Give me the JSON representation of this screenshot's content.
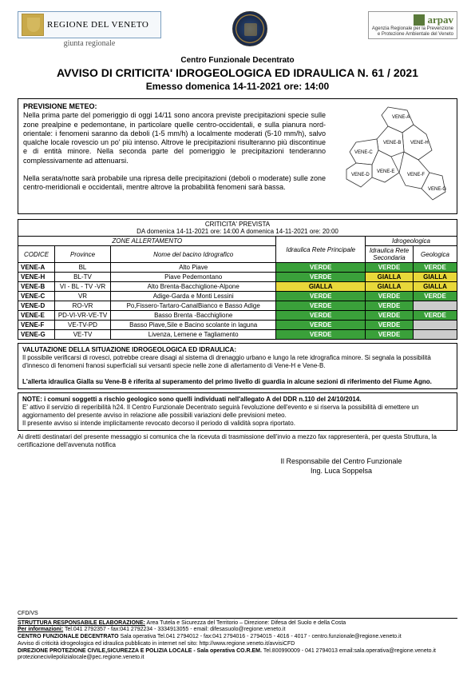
{
  "header": {
    "regione_line1": "REGIONE DEL VENETO",
    "giunta": "giunta regionale",
    "arpav_label": "arpav",
    "arpav_sub": "Agenzia Regionale per la Prevenzione\ne Protezione Ambientale del Veneto"
  },
  "titles": {
    "t1": "Centro Funzionale Decentrato",
    "t2": "AVVISO DI CRITICITA' IDROGEOLOGICA ED IDRAULICA N. 61 / 2021",
    "t3": "Emesso  domenica 14-11-2021 ore: 14:00"
  },
  "previsione": {
    "heading": "PREVISIONE METEO:",
    "p1": "Nella prima parte del pomeriggio di oggi 14/11 sono ancora previste precipitazioni specie sulle zone prealpine e pedemontane, in particolare quelle centro-occidentali, e sulla pianura nord-orientale: i fenomeni saranno da deboli (1-5 mm/h) a localmente moderati (5-10 mm/h), salvo qualche locale rovescio un po' più intenso. Altrove le precipitazioni risulteranno più discontinue e di entità minore. Nella seconda parte del pomeriggio le precipitazioni tenderanno complessivamente ad attenuarsi.",
    "p2": "Nella serata/notte sarà probabile una ripresa delle precipitazioni (deboli o moderate) sulle zone centro-meridionali e occidentali, mentre altrove la probabilità fenomeni sarà bassa."
  },
  "map_labels": [
    "VENE-A",
    "VENE-B",
    "VENE-C",
    "VENE-D",
    "VENE-E",
    "VENE-F",
    "VENE-G",
    "VENE-H"
  ],
  "criticita": {
    "title": "CRITICITA' PREVISTA",
    "period": "DA domenica 14-11-2021 ore: 14:00 A domenica 14-11-2021 ore: 20:00",
    "zone_hdr": "ZONE ALLERTAMENTO",
    "idrogeo_hdr": "Idrogeologica",
    "col_codice": "CODICE",
    "col_province": "Province",
    "col_bacino": "Nome del bacino Idrografico",
    "col_idr_princ": "Idraulica Rete Principale",
    "col_idr_sec": "Idraulica Rete Secondaria",
    "col_geo": "Geologica",
    "rows": [
      {
        "code": "VENE-A",
        "prov": "BL",
        "bacino": "Alto Piave",
        "c1": "VERDE",
        "c2": "VERDE",
        "c3": "VERDE"
      },
      {
        "code": "VENE-H",
        "prov": "BL-TV",
        "bacino": "Piave Pedemontano",
        "c1": "VERDE",
        "c2": "GIALLA",
        "c3": "GIALLA"
      },
      {
        "code": "VENE-B",
        "prov": "VI - BL - TV -VR",
        "bacino": "Alto Brenta-Bacchiglione-Alpone",
        "c1": "GIALLA",
        "c2": "GIALLA",
        "c3": "GIALLA"
      },
      {
        "code": "VENE-C",
        "prov": "VR",
        "bacino": "Adige-Garda e Monti Lessini",
        "c1": "VERDE",
        "c2": "VERDE",
        "c3": "VERDE"
      },
      {
        "code": "VENE-D",
        "prov": "RO-VR",
        "bacino": "Po,Fissero-Tartaro-CanalBianco e Basso Adige",
        "c1": "VERDE",
        "c2": "VERDE",
        "c3": ""
      },
      {
        "code": "VENE-E",
        "prov": "PD-VI-VR-VE-TV",
        "bacino": "Basso Brenta -Bacchiglione",
        "c1": "VERDE",
        "c2": "VERDE",
        "c3": "VERDE"
      },
      {
        "code": "VENE-F",
        "prov": "VE-TV-PD",
        "bacino": "Basso Piave,Sile e Bacino scolante in laguna",
        "c1": "VERDE",
        "c2": "VERDE",
        "c3": ""
      },
      {
        "code": "VENE-G",
        "prov": "VE-TV",
        "bacino": "Livenza, Lemene e Tagliamento",
        "c1": "VERDE",
        "c2": "VERDE",
        "c3": ""
      }
    ]
  },
  "colors": {
    "verde": "#3aa03a",
    "gialla": "#e8d83a",
    "grigio": "#cccccc"
  },
  "valutazione": {
    "heading": "VALUTAZIONE DELLA SITUAZIONE IDROGEOLOGICA ED IDRAULICA:",
    "p1": "Il possibile verificarsi di rovesci, potrebbe creare disagi al sistema di drenaggio urbano e lungo la rete idrografica minore. Si segnala la possibilità d'innesco di fenomeni franosi superficiali sui versanti specie nelle zone di allertamento di Vene-H e Vene-B.",
    "p2": "L'allerta idraulica Gialla su Vene-B è riferita al superamento del primo livello di guardia in alcune sezioni di riferimento del Fiume Agno."
  },
  "note": {
    "heading": "NOTE: i comuni soggetti a rischio geologico sono quelli individuati nell'allegato A del DDR n.110 del 24/10/2014.",
    "p1": "E' attivo il servizio di reperibilità h24. Il Centro Funzionale Decentrato seguirà l'evoluzione dell'evento e si riserva la possibilità di emettere un aggiornamento del presente avviso in relazione alle possibili variazioni delle previsioni meteo.",
    "p2": "Il presente avviso si intende implicitamente revocato decorso il periodo di validità sopra riportato."
  },
  "legal": "Ai diretti destinatari del presente messaggio si comunica che la ricevuta di trasmissione dell'invio a mezzo fax rappresenterà, per questa Struttura, la certificazione dell'avvenuta notifica",
  "signature": {
    "l1": "Il Responsabile del Centro Funzionale",
    "l2": "Ing. Luca Soppelsa"
  },
  "footer": {
    "cfd": "CFD/VS",
    "l1a": "STRUTTURA RESPONSABILE ELABORAZIONE:",
    "l1b": " Area Tutela e Sicurezza del Territorio – Direzione: Difesa del Suolo e della Costa",
    "l2a": "Per informazioni:",
    "l2b": " Tel.041 2792357 - fax:041 2792234 - 3334913055 - email: difesasuolo@regione.veneto.it",
    "l3a": "CENTRO FUNZIONALE DECENTRATO ",
    "l3b": "Sala operativa Tel.041 2794012 - fax:041 2794016 - 2794015 - 4016 - 4017 - centro.funzionale@regione.veneto.it",
    "l4": "Avviso di criticità idrogeologica ed idraulica pubblicato in internet nel sito: http://www.regione.veneto.it/avvisiCFD",
    "l5a": "DIREZIONE PROTEZIONE CIVILE,SICUREZZA E POLIZIA LOCALE - Sala operativa CO.R.EM. ",
    "l5b": "Tel.800990009 - 041 2794013 email:sala.operativa@regione.veneto.it protezionecivilepolizialocale@pec.regione.veneto.it"
  }
}
